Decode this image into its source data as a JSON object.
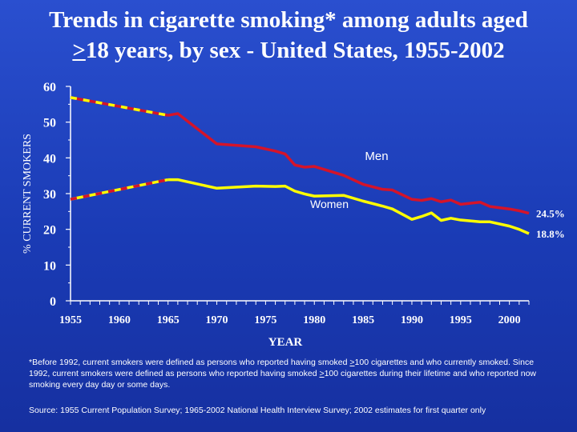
{
  "title": {
    "line1": "Trends in cigarette smoking* among adults aged",
    "line2_ge": ">",
    "line2_rest": "18 years, by sex - United States, 1955-2002"
  },
  "footnote": {
    "part1": "*Before 1992, current smokers were defined as persons who reported having smoked ",
    "ge1": ">",
    "part2": "100 cigarettes and who currently smoked. Since 1992, current smokers were defined as persons who reported having smoked ",
    "ge2": ">",
    "part3": "100 cigarettes during their lifetime and who reported now smoking every day day or some days."
  },
  "source": "Source: 1955 Current Population Survey; 1965-2002 National Health Interview Survey; 2002 estimates for first quarter only",
  "colors": {
    "background": "#1f44c4",
    "men": "#d4142a",
    "women": "#ffff00",
    "axis": "#ffffff"
  },
  "chart_data": {
    "type": "line",
    "xlabel": "YEAR",
    "ylabel": "% CURRENT SMOKERS",
    "xlim": [
      1955,
      2002
    ],
    "ylim": [
      0,
      60
    ],
    "x_ticks": [
      "1955",
      "1960",
      "1965",
      "1970",
      "1975",
      "1980",
      "1985",
      "1990",
      "1995",
      "2000"
    ],
    "y_ticks": [
      "0",
      "10",
      "20",
      "30",
      "40",
      "50",
      "60"
    ],
    "grid": false,
    "series": [
      {
        "name": "Men",
        "end_label": "24.5%",
        "x": [
          1955,
          1965,
          1966,
          1970,
          1974,
          1976,
          1977,
          1978,
          1979,
          1980,
          1983,
          1985,
          1987,
          1988,
          1990,
          1991,
          1992,
          1993,
          1994,
          1995,
          1997,
          1998,
          2000,
          2001,
          2002
        ],
        "y": [
          56.9,
          51.9,
          52.4,
          43.9,
          43.1,
          41.9,
          41.1,
          38.0,
          37.4,
          37.6,
          35.1,
          32.6,
          31.2,
          31.0,
          28.4,
          28.1,
          28.6,
          27.7,
          28.2,
          27.0,
          27.6,
          26.4,
          25.7,
          25.2,
          24.5
        ],
        "dashed_until": 1965
      },
      {
        "name": "Women",
        "end_label": "18.8%",
        "x": [
          1955,
          1965,
          1966,
          1970,
          1974,
          1976,
          1977,
          1978,
          1979,
          1980,
          1983,
          1985,
          1987,
          1988,
          1990,
          1991,
          1992,
          1993,
          1994,
          1995,
          1997,
          1998,
          2000,
          2001,
          2002
        ],
        "y": [
          28.4,
          33.9,
          33.9,
          31.5,
          32.1,
          32.0,
          32.1,
          30.7,
          29.9,
          29.3,
          29.5,
          27.9,
          26.5,
          25.7,
          22.8,
          23.6,
          24.6,
          22.5,
          23.1,
          22.6,
          22.1,
          22.1,
          20.9,
          20.0,
          18.8
        ],
        "dashed_until": 1965
      }
    ]
  }
}
